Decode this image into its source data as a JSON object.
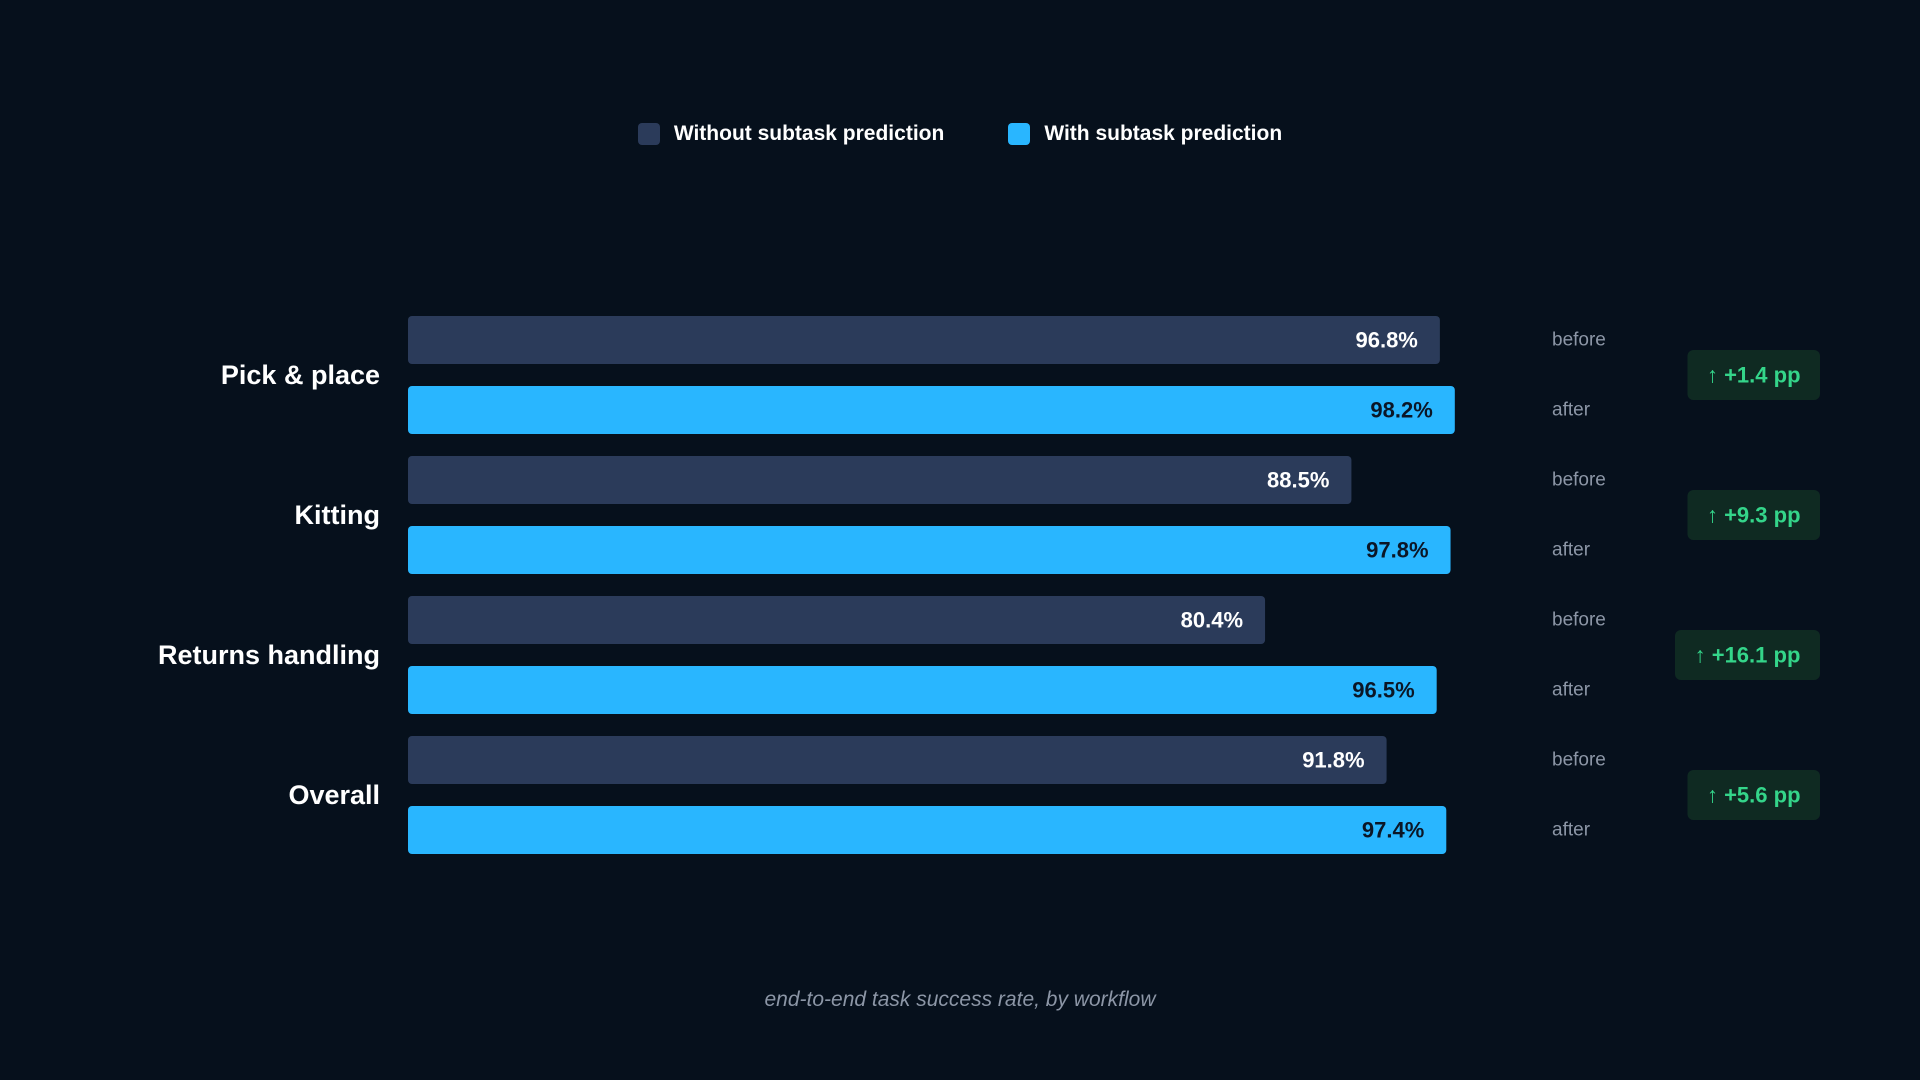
{
  "chart_data": {
    "type": "bar",
    "orientation": "horizontal",
    "caption": "end-to-end task success rate, by workflow",
    "categories": [
      "Pick & place",
      "Kitting",
      "Returns handling",
      "Overall"
    ],
    "series": [
      {
        "name": "Without subtask prediction",
        "row_label": "before",
        "color": "#2b3b5a",
        "text_color": "#ffffff",
        "values": [
          96.8,
          88.5,
          80.4,
          91.8
        ]
      },
      {
        "name": "With subtask prediction",
        "row_label": "after",
        "color": "#29b6ff",
        "text_color": "#0b1626",
        "values": [
          98.2,
          97.8,
          96.5,
          97.4
        ]
      }
    ],
    "value_suffix": "%",
    "deltas": [
      "↑ +1.4 pp",
      "↑ +9.3 pp",
      "↑ +16.1 pp",
      "↑ +5.6 pp"
    ],
    "xlim": [
      0,
      100
    ],
    "grid": false,
    "legend_position": "top-center",
    "colors": {
      "background": "#06101c",
      "label": "#ffffff",
      "row_label": "#8c96a6",
      "delta_bg": "#0f2a22",
      "delta_text": "#34d58a"
    }
  }
}
